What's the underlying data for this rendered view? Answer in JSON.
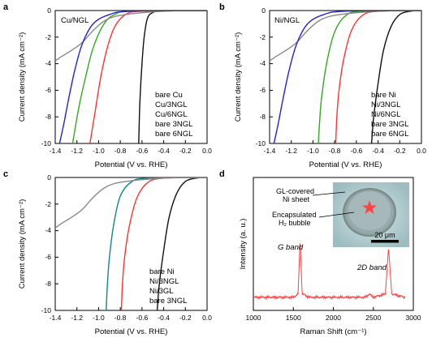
{
  "chart_data": [
    {
      "type": "line",
      "panel_label": "a",
      "inset_label": "Cu/NGL",
      "xlabel": "Potential (V vs. RHE)",
      "ylabel": "Current density (mA cm⁻²)",
      "xlim": [
        -1.4,
        0.0
      ],
      "ylim": [
        -10,
        0
      ],
      "x_ticks": [
        "-1.4",
        "-1.2",
        "-1.0",
        "-0.8",
        "-0.6",
        "-0.4",
        "-0.2",
        "0.0"
      ],
      "y_ticks": [
        "0",
        "-2",
        "-4",
        "-6",
        "-8",
        "-10"
      ],
      "legend_position": "bottom-right",
      "series": [
        {
          "name": "bare Cu",
          "color": "#111111",
          "points": [
            [
              0.0,
              0
            ],
            [
              -0.4,
              -0.02
            ],
            [
              -0.5,
              -0.15
            ],
            [
              -0.55,
              -0.6
            ],
            [
              -0.58,
              -2.0
            ],
            [
              -0.6,
              -4.0
            ],
            [
              -0.62,
              -7.0
            ],
            [
              -0.63,
              -10
            ]
          ]
        },
        {
          "name": "Cu/3NGL",
          "color": "#ff3333",
          "points": [
            [
              0.0,
              0
            ],
            [
              -0.6,
              -0.05
            ],
            [
              -0.75,
              -0.3
            ],
            [
              -0.85,
              -1.2
            ],
            [
              -0.92,
              -2.8
            ],
            [
              -0.98,
              -5.0
            ],
            [
              -1.03,
              -7.5
            ],
            [
              -1.08,
              -10
            ]
          ]
        },
        {
          "name": "Cu/6NGL",
          "color": "#33aa22",
          "points": [
            [
              0.0,
              0
            ],
            [
              -0.7,
              -0.05
            ],
            [
              -0.85,
              -0.3
            ],
            [
              -0.95,
              -1.0
            ],
            [
              -1.05,
              -2.8
            ],
            [
              -1.12,
              -5.0
            ],
            [
              -1.18,
              -7.2
            ],
            [
              -1.24,
              -10
            ]
          ]
        },
        {
          "name": "bare 3NGL",
          "color": "#888888",
          "points": [
            [
              0.0,
              0
            ],
            [
              -0.3,
              -0.02
            ],
            [
              -0.5,
              -0.1
            ],
            [
              -0.7,
              -0.25
            ],
            [
              -0.85,
              -0.45
            ],
            [
              -0.95,
              -0.8
            ],
            [
              -1.05,
              -1.5
            ],
            [
              -1.15,
              -2.4
            ],
            [
              -1.25,
              -3.0
            ],
            [
              -1.35,
              -3.5
            ],
            [
              -1.4,
              -3.8
            ]
          ]
        },
        {
          "name": "bare 6NGL",
          "color": "#2222dd",
          "points": [
            [
              0.0,
              0
            ],
            [
              -0.7,
              -0.05
            ],
            [
              -0.9,
              -0.3
            ],
            [
              -1.05,
              -1.0
            ],
            [
              -1.15,
              -2.5
            ],
            [
              -1.22,
              -4.5
            ],
            [
              -1.28,
              -6.8
            ],
            [
              -1.32,
              -8.5
            ],
            [
              -1.36,
              -10
            ]
          ]
        }
      ]
    },
    {
      "type": "line",
      "panel_label": "b",
      "inset_label": "Ni/NGL",
      "xlabel": "Potential (V vs. RHE)",
      "ylabel": "Current density (mA cm⁻²)",
      "xlim": [
        -1.4,
        0.0
      ],
      "ylim": [
        -10,
        0
      ],
      "x_ticks": [
        "-1.4",
        "-1.2",
        "-1.0",
        "-0.8",
        "-0.6",
        "-0.4",
        "-0.2",
        "0.0"
      ],
      "y_ticks": [
        "0",
        "-2",
        "-4",
        "-6",
        "-8",
        "-10"
      ],
      "legend_position": "bottom-right",
      "series": [
        {
          "name": "bare Ni",
          "color": "#111111",
          "points": [
            [
              0.0,
              0
            ],
            [
              -0.1,
              -0.05
            ],
            [
              -0.2,
              -0.3
            ],
            [
              -0.28,
              -1.2
            ],
            [
              -0.35,
              -3.0
            ],
            [
              -0.4,
              -5.5
            ],
            [
              -0.44,
              -8.0
            ],
            [
              -0.46,
              -10
            ]
          ]
        },
        {
          "name": "Ni/3NGL",
          "color": "#ff3333",
          "points": [
            [
              0.0,
              0
            ],
            [
              -0.4,
              -0.05
            ],
            [
              -0.55,
              -0.4
            ],
            [
              -0.65,
              -1.6
            ],
            [
              -0.72,
              -3.8
            ],
            [
              -0.76,
              -6.0
            ],
            [
              -0.78,
              -8.0
            ],
            [
              -0.79,
              -10
            ]
          ]
        },
        {
          "name": "Ni/6NGL",
          "color": "#33aa22",
          "points": [
            [
              0.0,
              0
            ],
            [
              -0.55,
              -0.05
            ],
            [
              -0.7,
              -0.4
            ],
            [
              -0.8,
              -1.6
            ],
            [
              -0.87,
              -3.8
            ],
            [
              -0.92,
              -6.5
            ],
            [
              -0.94,
              -8.5
            ],
            [
              -0.95,
              -10
            ]
          ]
        },
        {
          "name": "bare 3NGL",
          "color": "#888888",
          "points": [
            [
              0.0,
              0
            ],
            [
              -0.3,
              -0.02
            ],
            [
              -0.5,
              -0.1
            ],
            [
              -0.7,
              -0.25
            ],
            [
              -0.85,
              -0.45
            ],
            [
              -0.95,
              -0.8
            ],
            [
              -1.05,
              -1.5
            ],
            [
              -1.15,
              -2.4
            ],
            [
              -1.25,
              -3.0
            ],
            [
              -1.35,
              -3.5
            ],
            [
              -1.4,
              -3.8
            ]
          ]
        },
        {
          "name": "bare 6NGL",
          "color": "#2222dd",
          "points": [
            [
              0.0,
              0
            ],
            [
              -0.7,
              -0.05
            ],
            [
              -0.9,
              -0.3
            ],
            [
              -1.05,
              -1.0
            ],
            [
              -1.15,
              -2.5
            ],
            [
              -1.22,
              -4.5
            ],
            [
              -1.28,
              -6.8
            ],
            [
              -1.32,
              -8.5
            ],
            [
              -1.36,
              -10
            ]
          ]
        }
      ]
    },
    {
      "type": "line",
      "panel_label": "c",
      "inset_label": "",
      "xlabel": "Potential (V vs. RHE)",
      "ylabel": "Current density (mA cm⁻²)",
      "xlim": [
        -1.4,
        0.0
      ],
      "ylim": [
        -10,
        0
      ],
      "x_ticks": [
        "-1.4",
        "-1.2",
        "-1.0",
        "-0.8",
        "-0.6",
        "-0.4",
        "-0.2",
        "0.0"
      ],
      "y_ticks": [
        "0",
        "-2",
        "-4",
        "-6",
        "-8",
        "-10"
      ],
      "legend_position": "bottom-right",
      "series": [
        {
          "name": "bare Ni",
          "color": "#111111",
          "points": [
            [
              0.0,
              0
            ],
            [
              -0.1,
              -0.05
            ],
            [
              -0.2,
              -0.3
            ],
            [
              -0.28,
              -1.2
            ],
            [
              -0.35,
              -3.0
            ],
            [
              -0.4,
              -5.5
            ],
            [
              -0.44,
              -8.0
            ],
            [
              -0.46,
              -10
            ]
          ]
        },
        {
          "name": "Ni/3NGL",
          "color": "#ff3333",
          "points": [
            [
              0.0,
              0
            ],
            [
              -0.4,
              -0.05
            ],
            [
              -0.55,
              -0.4
            ],
            [
              -0.65,
              -1.6
            ],
            [
              -0.72,
              -3.8
            ],
            [
              -0.76,
              -6.0
            ],
            [
              -0.78,
              -8.0
            ],
            [
              -0.79,
              -10
            ]
          ]
        },
        {
          "name": "Ni/3GL",
          "color": "#118888",
          "points": [
            [
              0.0,
              0
            ],
            [
              -0.55,
              -0.05
            ],
            [
              -0.7,
              -0.35
            ],
            [
              -0.8,
              -1.4
            ],
            [
              -0.86,
              -3.5
            ],
            [
              -0.9,
              -6.0
            ],
            [
              -0.92,
              -8.2
            ],
            [
              -0.93,
              -10
            ]
          ]
        },
        {
          "name": "bare 3NGL",
          "color": "#888888",
          "points": [
            [
              0.0,
              0
            ],
            [
              -0.3,
              -0.02
            ],
            [
              -0.5,
              -0.1
            ],
            [
              -0.7,
              -0.25
            ],
            [
              -0.85,
              -0.45
            ],
            [
              -0.95,
              -0.8
            ],
            [
              -1.05,
              -1.5
            ],
            [
              -1.15,
              -2.4
            ],
            [
              -1.25,
              -3.0
            ],
            [
              -1.35,
              -3.5
            ],
            [
              -1.4,
              -3.8
            ]
          ]
        }
      ]
    },
    {
      "type": "line",
      "panel_label": "d",
      "xlabel": "Raman Shift (cm⁻¹)",
      "ylabel": "Intensity (a. u.)",
      "xlim": [
        1000,
        3000
      ],
      "x_ticks": [
        "1000",
        "1500",
        "2000",
        "2500",
        "3000"
      ],
      "annotations": [
        "G band",
        "2D band"
      ],
      "inset": {
        "labels": [
          "GL-covered Ni sheet",
          "Encapsulated H₂ bubble"
        ],
        "scale_bar": "20 μm"
      },
      "series": [
        {
          "name": "",
          "color": "#ff4444",
          "points": [
            [
              1000,
              0.1
            ],
            [
              1500,
              0.1
            ],
            [
              1560,
              0.15
            ],
            [
              1585,
              1.0
            ],
            [
              1610,
              0.15
            ],
            [
              1700,
              0.1
            ],
            [
              2400,
              0.1
            ],
            [
              2450,
              0.15
            ],
            [
              2500,
              0.1
            ],
            [
              2650,
              0.15
            ],
            [
              2690,
              0.85
            ],
            [
              2730,
              0.15
            ],
            [
              2900,
              0.1
            ]
          ]
        }
      ]
    }
  ]
}
